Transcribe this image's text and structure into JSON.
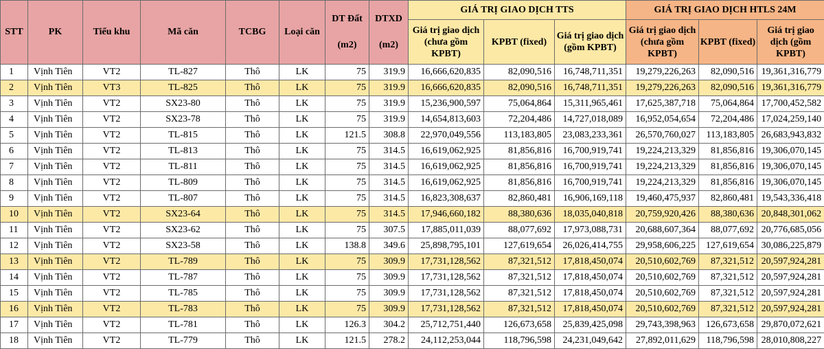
{
  "headers": {
    "stt": "STT",
    "pk": "PK",
    "tieu_khu": "Tiểu khu",
    "ma_can": "Mã căn",
    "tcbg": "TCBG",
    "loai_can": "Loại căn",
    "dt_dat_1": "DT Đất",
    "dt_dat_2": "(m2)",
    "dtxd_1": "DTXD",
    "dtxd_2": "(m2)",
    "group_tts": "GIÁ TRỊ GIAO DỊCH TTS",
    "group_htls": "GIÁ TRỊ GIAO DỊCH HTLS 24M",
    "gt_chua": "Giá trị giao dịch (chưa gồm KPBT)",
    "kpbt": "KPBT (fixed)",
    "gt_gom": "Giá trị giao dịch (gồm KPBT)"
  },
  "colors": {
    "header_pink": "#e8a4a4",
    "header_yellow": "#fde9a6",
    "header_orange": "#f6b586",
    "row_highlight": "#fde9a6"
  },
  "rows": [
    {
      "stt": "1",
      "pk": "Vịnh Tiên",
      "tk": "VT2",
      "ma": "TL-827",
      "tcbg": "Thô",
      "loai": "LK",
      "dt": "75",
      "dtxd": "319.9",
      "tts_chua": "16,666,620,835",
      "tts_kpbt": "82,090,516",
      "tts_gom": "16,748,711,351",
      "h_chua": "19,279,226,263",
      "h_kpbt": "82,090,516",
      "h_gom": "19,361,316,779",
      "hl": false
    },
    {
      "stt": "2",
      "pk": "Vịnh Tiên",
      "tk": "VT3",
      "ma": "TL-825",
      "tcbg": "Thô",
      "loai": "LK",
      "dt": "75",
      "dtxd": "319.9",
      "tts_chua": "16,666,620,835",
      "tts_kpbt": "82,090,516",
      "tts_gom": "16,748,711,351",
      "h_chua": "19,279,226,263",
      "h_kpbt": "82,090,516",
      "h_gom": "19,361,316,779",
      "hl": true
    },
    {
      "stt": "3",
      "pk": "Vịnh Tiên",
      "tk": "VT2",
      "ma": "SX23-80",
      "tcbg": "Thô",
      "loai": "LK",
      "dt": "75",
      "dtxd": "319.9",
      "tts_chua": "15,236,900,597",
      "tts_kpbt": "75,064,864",
      "tts_gom": "15,311,965,461",
      "h_chua": "17,625,387,718",
      "h_kpbt": "75,064,864",
      "h_gom": "17,700,452,582",
      "hl": false
    },
    {
      "stt": "4",
      "pk": "Vịnh Tiên",
      "tk": "VT2",
      "ma": "SX23-78",
      "tcbg": "Thô",
      "loai": "LK",
      "dt": "75",
      "dtxd": "319.9",
      "tts_chua": "14,654,813,603",
      "tts_kpbt": "72,204,486",
      "tts_gom": "14,727,018,089",
      "h_chua": "16,952,054,654",
      "h_kpbt": "72,204,486",
      "h_gom": "17,024,259,140",
      "hl": false
    },
    {
      "stt": "5",
      "pk": "Vịnh Tiên",
      "tk": "VT2",
      "ma": "TL-815",
      "tcbg": "Thô",
      "loai": "LK",
      "dt": "121.5",
      "dtxd": "308.8",
      "tts_chua": "22,970,049,556",
      "tts_kpbt": "113,183,805",
      "tts_gom": "23,083,233,361",
      "h_chua": "26,570,760,027",
      "h_kpbt": "113,183,805",
      "h_gom": "26,683,943,832",
      "hl": false
    },
    {
      "stt": "6",
      "pk": "Vịnh Tiên",
      "tk": "VT2",
      "ma": "TL-813",
      "tcbg": "Thô",
      "loai": "LK",
      "dt": "75",
      "dtxd": "314.5",
      "tts_chua": "16,619,062,925",
      "tts_kpbt": "81,856,816",
      "tts_gom": "16,700,919,741",
      "h_chua": "19,224,213,329",
      "h_kpbt": "81,856,816",
      "h_gom": "19,306,070,145",
      "hl": false
    },
    {
      "stt": "7",
      "pk": "Vịnh Tiên",
      "tk": "VT2",
      "ma": "TL-811",
      "tcbg": "Thô",
      "loai": "LK",
      "dt": "75",
      "dtxd": "314.5",
      "tts_chua": "16,619,062,925",
      "tts_kpbt": "81,856,816",
      "tts_gom": "16,700,919,741",
      "h_chua": "19,224,213,329",
      "h_kpbt": "81,856,816",
      "h_gom": "19,306,070,145",
      "hl": false
    },
    {
      "stt": "8",
      "pk": "Vịnh Tiên",
      "tk": "VT2",
      "ma": "TL-809",
      "tcbg": "Thô",
      "loai": "LK",
      "dt": "75",
      "dtxd": "314.5",
      "tts_chua": "16,619,062,925",
      "tts_kpbt": "81,856,816",
      "tts_gom": "16,700,919,741",
      "h_chua": "19,224,213,329",
      "h_kpbt": "81,856,816",
      "h_gom": "19,306,070,145",
      "hl": false
    },
    {
      "stt": "9",
      "pk": "Vịnh Tiên",
      "tk": "VT2",
      "ma": "TL-807",
      "tcbg": "Thô",
      "loai": "LK",
      "dt": "75",
      "dtxd": "314.5",
      "tts_chua": "16,823,308,637",
      "tts_kpbt": "82,860,481",
      "tts_gom": "16,906,169,118",
      "h_chua": "19,460,475,937",
      "h_kpbt": "82,860,481",
      "h_gom": "19,543,336,418",
      "hl": false
    },
    {
      "stt": "10",
      "pk": "Vịnh Tiên",
      "tk": "VT2",
      "ma": "SX23-64",
      "tcbg": "Thô",
      "loai": "LK",
      "dt": "75",
      "dtxd": "314.5",
      "tts_chua": "17,946,660,182",
      "tts_kpbt": "88,380,636",
      "tts_gom": "18,035,040,818",
      "h_chua": "20,759,920,426",
      "h_kpbt": "88,380,636",
      "h_gom": "20,848,301,062",
      "hl": true
    },
    {
      "stt": "11",
      "pk": "Vịnh Tiên",
      "tk": "VT2",
      "ma": "SX23-62",
      "tcbg": "Thô",
      "loai": "LK",
      "dt": "75",
      "dtxd": "307.5",
      "tts_chua": "17,885,011,039",
      "tts_kpbt": "88,077,692",
      "tts_gom": "17,973,088,731",
      "h_chua": "20,688,607,364",
      "h_kpbt": "88,077,692",
      "h_gom": "20,776,685,056",
      "hl": false
    },
    {
      "stt": "12",
      "pk": "Vịnh Tiên",
      "tk": "VT2",
      "ma": "SX23-58",
      "tcbg": "Thô",
      "loai": "LK",
      "dt": "138.8",
      "dtxd": "349.6",
      "tts_chua": "25,898,795,101",
      "tts_kpbt": "127,619,654",
      "tts_gom": "26,026,414,755",
      "h_chua": "29,958,606,225",
      "h_kpbt": "127,619,654",
      "h_gom": "30,086,225,879",
      "hl": false
    },
    {
      "stt": "13",
      "pk": "Vịnh Tiên",
      "tk": "VT2",
      "ma": "TL-789",
      "tcbg": "Thô",
      "loai": "LK",
      "dt": "75",
      "dtxd": "309.9",
      "tts_chua": "17,731,128,562",
      "tts_kpbt": "87,321,512",
      "tts_gom": "17,818,450,074",
      "h_chua": "20,510,602,769",
      "h_kpbt": "87,321,512",
      "h_gom": "20,597,924,281",
      "hl": true
    },
    {
      "stt": "14",
      "pk": "Vịnh Tiên",
      "tk": "VT2",
      "ma": "TL-787",
      "tcbg": "Thô",
      "loai": "LK",
      "dt": "75",
      "dtxd": "309.9",
      "tts_chua": "17,731,128,562",
      "tts_kpbt": "87,321,512",
      "tts_gom": "17,818,450,074",
      "h_chua": "20,510,602,769",
      "h_kpbt": "87,321,512",
      "h_gom": "20,597,924,281",
      "hl": false
    },
    {
      "stt": "15",
      "pk": "Vịnh Tiên",
      "tk": "VT2",
      "ma": "TL-785",
      "tcbg": "Thô",
      "loai": "LK",
      "dt": "75",
      "dtxd": "309.9",
      "tts_chua": "17,731,128,562",
      "tts_kpbt": "87,321,512",
      "tts_gom": "17,818,450,074",
      "h_chua": "20,510,602,769",
      "h_kpbt": "87,321,512",
      "h_gom": "20,597,924,281",
      "hl": false
    },
    {
      "stt": "16",
      "pk": "Vịnh Tiên",
      "tk": "VT2",
      "ma": "TL-783",
      "tcbg": "Thô",
      "loai": "LK",
      "dt": "75",
      "dtxd": "309.9",
      "tts_chua": "17,731,128,562",
      "tts_kpbt": "87,321,512",
      "tts_gom": "17,818,450,074",
      "h_chua": "20,510,602,769",
      "h_kpbt": "87,321,512",
      "h_gom": "20,597,924,281",
      "hl": true
    },
    {
      "stt": "17",
      "pk": "Vịnh Tiên",
      "tk": "VT2",
      "ma": "TL-781",
      "tcbg": "Thô",
      "loai": "LK",
      "dt": "126.3",
      "dtxd": "304.2",
      "tts_chua": "25,712,751,440",
      "tts_kpbt": "126,673,658",
      "tts_gom": "25,839,425,098",
      "h_chua": "29,743,398,963",
      "h_kpbt": "126,673,658",
      "h_gom": "29,870,072,621",
      "hl": false
    },
    {
      "stt": "18",
      "pk": "Vịnh Tiên",
      "tk": "VT2",
      "ma": "TL-779",
      "tcbg": "Thô",
      "loai": "LK",
      "dt": "121.5",
      "dtxd": "278.2",
      "tts_chua": "24,112,253,044",
      "tts_kpbt": "118,796,598",
      "tts_gom": "24,231,049,642",
      "h_chua": "27,892,011,629",
      "h_kpbt": "118,796,598",
      "h_gom": "28,010,808,227",
      "hl": false
    }
  ]
}
